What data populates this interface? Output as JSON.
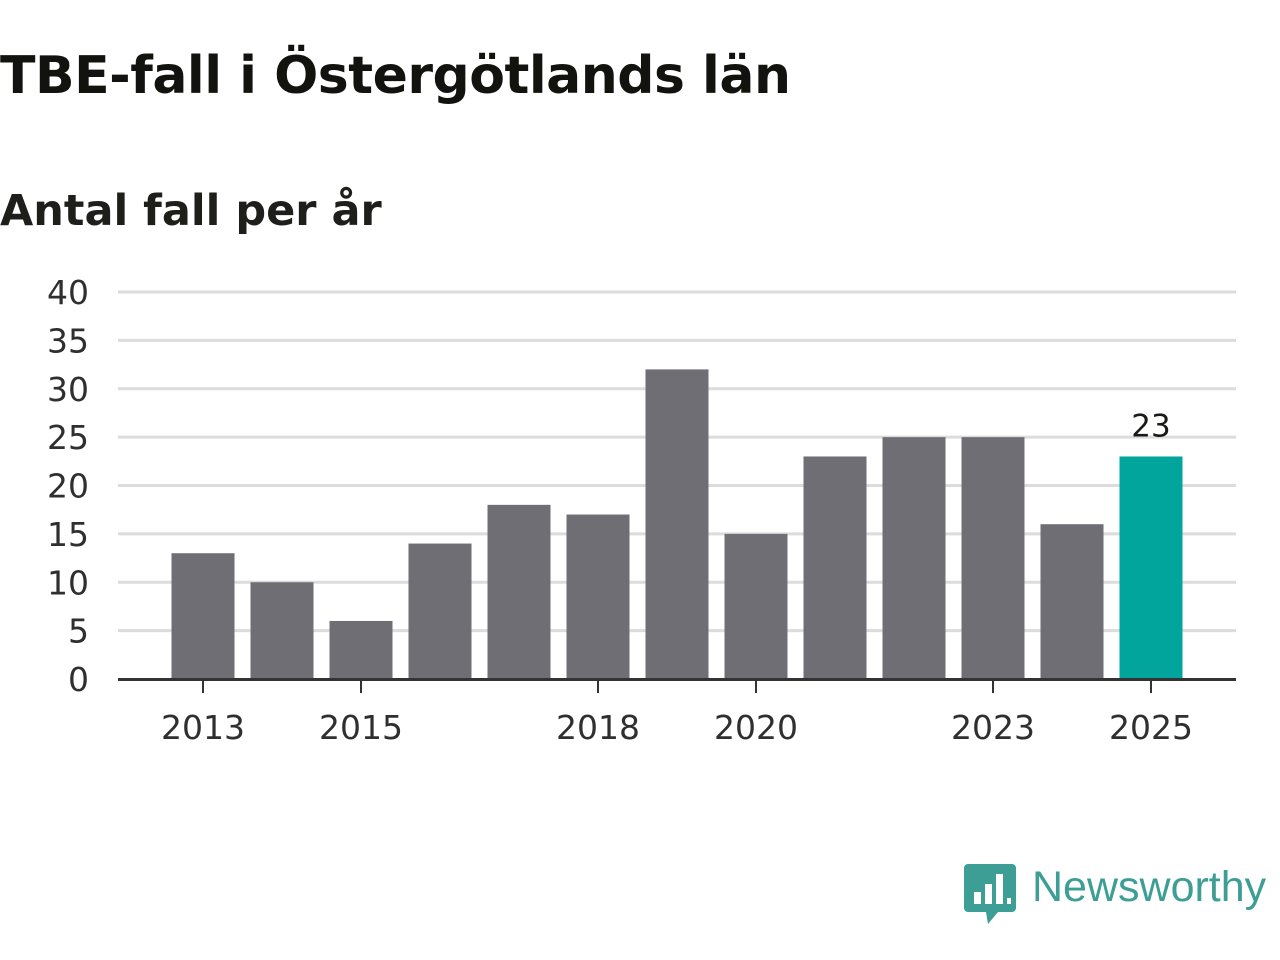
{
  "header": {
    "title": "TBE-fall i Östergötlands län",
    "subtitle": "Antal fall per år"
  },
  "chart_data": {
    "type": "bar",
    "title": "TBE-fall i Östergötlands län",
    "subtitle": "Antal fall per år",
    "xlabel": "",
    "ylabel": "Antal fall per år",
    "categories": [
      "2013",
      "2014",
      "2015",
      "2016",
      "2017",
      "2018",
      "2019",
      "2020",
      "2021",
      "2022",
      "2023",
      "2024",
      "2025"
    ],
    "values": [
      13,
      10,
      6,
      14,
      18,
      17,
      32,
      15,
      23,
      25,
      25,
      16,
      23
    ],
    "ylim": [
      0,
      40
    ],
    "yticks": [
      0,
      5,
      10,
      15,
      20,
      25,
      30,
      35,
      40
    ],
    "xticks": [
      "2013",
      "2015",
      "2018",
      "2020",
      "2023",
      "2025"
    ],
    "highlight_index": 12,
    "data_labels": [
      {
        "category": "2025",
        "text": "23"
      }
    ],
    "grid": true,
    "colors": {
      "bar": "#6f6e74",
      "highlight": "#01a59b",
      "grid": "#dcdcdc",
      "axis": "#333333",
      "tick_text": "#2f2f2f"
    }
  },
  "brand": {
    "name": "Newsworthy",
    "logo_icon": "newsworthy-logo-icon",
    "color": "#3d9e95"
  }
}
